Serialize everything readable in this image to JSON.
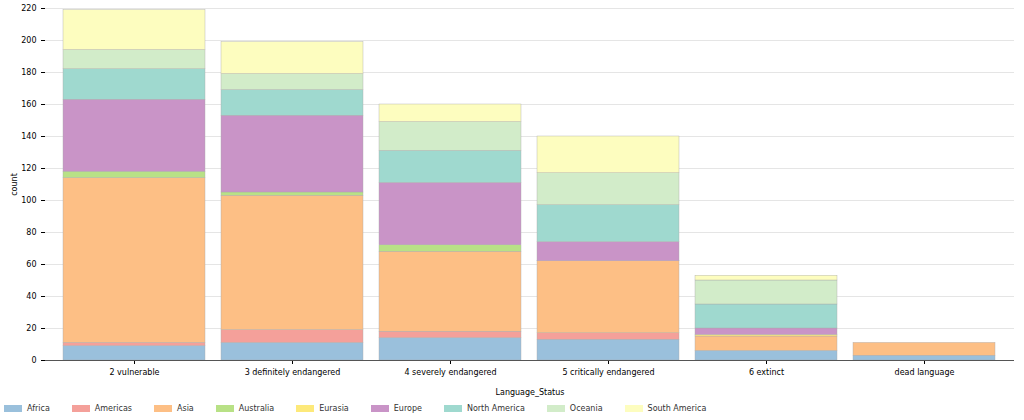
{
  "chart_data": {
    "type": "bar",
    "stacked": true,
    "grid": true,
    "x_label": "Language_Status",
    "y_label": "count",
    "categories": [
      "2 vulnerable",
      "3 definitely endangered",
      "4 severely endangered",
      "5 critically endangered",
      "6 extinct",
      "dead language"
    ],
    "ylim": [
      0,
      220
    ],
    "yticks": [
      0,
      20,
      40,
      60,
      80,
      100,
      120,
      140,
      160,
      180,
      200,
      220
    ],
    "legend": "bottom",
    "series": [
      {
        "name": "Africa",
        "color": "#9ac0dc",
        "values": [
          9,
          11,
          14,
          13,
          6,
          3
        ]
      },
      {
        "name": "Americas",
        "color": "#f4a09a",
        "values": [
          2,
          8,
          4,
          4,
          0,
          0
        ]
      },
      {
        "name": "Asia",
        "color": "#fdbf85",
        "values": [
          103,
          84,
          50,
          45,
          9,
          8
        ]
      },
      {
        "name": "Australia",
        "color": "#b8e186",
        "values": [
          4,
          2,
          4,
          0,
          0,
          0
        ]
      },
      {
        "name": "Eurasia",
        "color": "#fde97a",
        "values": [
          0,
          0,
          0,
          0,
          1,
          0
        ]
      },
      {
        "name": "Europe",
        "color": "#c994c7",
        "values": [
          45,
          48,
          39,
          12,
          4,
          0
        ]
      },
      {
        "name": "North America",
        "color": "#9fd9cf",
        "values": [
          19,
          16,
          20,
          23,
          15,
          0
        ]
      },
      {
        "name": "Oceania",
        "color": "#d2ecc9",
        "values": [
          12,
          10,
          18,
          20,
          15,
          0
        ]
      },
      {
        "name": "South America",
        "color": "#fdfdbf",
        "values": [
          25,
          20,
          11,
          23,
          3,
          0
        ]
      }
    ]
  }
}
